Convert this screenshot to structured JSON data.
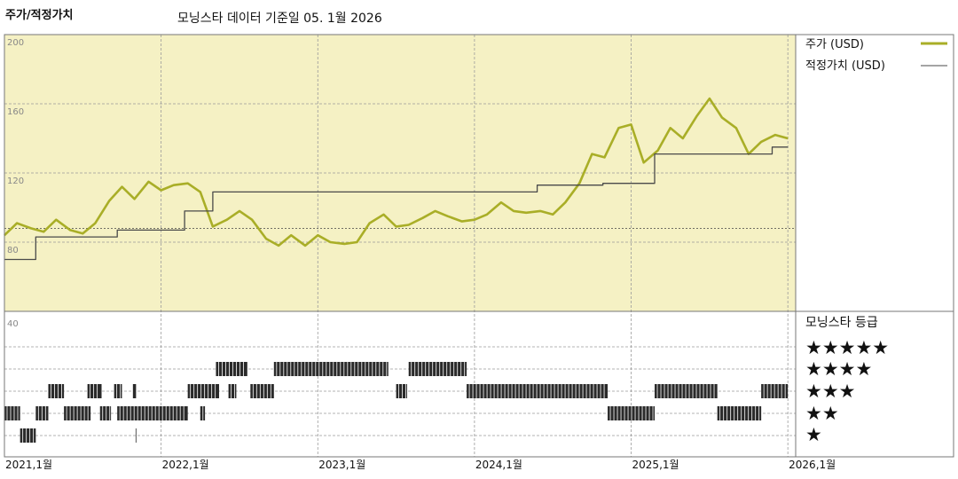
{
  "header": {
    "title": "주가/적정가치",
    "subtitle": "모닝스타 데이터 기준일 05. 1월 2026"
  },
  "legend": {
    "price_label": "주가 (USD)",
    "fair_value_label": "적정가치 (USD)"
  },
  "rating_panel": {
    "title": "모닝스타 등급",
    "stars": [
      "★★★★★",
      "★★★★",
      "★★★",
      "★★",
      "★"
    ]
  },
  "colors": {
    "plot_bg": "#f5f1c4",
    "price_line": "#a9ae27",
    "fair_value_line": "#4a4a4a",
    "rating_bar": "#2a2a2a",
    "grid": "#9a9a9a"
  },
  "chart_data": {
    "type": "line",
    "x_ticks": [
      "2021,1월",
      "2022,1월",
      "2023,1월",
      "2024,1월",
      "2025,1월",
      "2026,1월"
    ],
    "y_ticks": [
      200,
      160,
      120,
      80,
      40
    ],
    "ylim": [
      40,
      200
    ],
    "y_reference_line": 88,
    "xlim": [
      2021.0,
      2026.05
    ],
    "series": [
      {
        "name": "주가 (USD)",
        "points": [
          [
            2021.0,
            84
          ],
          [
            2021.08,
            91
          ],
          [
            2021.17,
            88
          ],
          [
            2021.25,
            86
          ],
          [
            2021.33,
            93
          ],
          [
            2021.42,
            87
          ],
          [
            2021.5,
            85
          ],
          [
            2021.58,
            91
          ],
          [
            2021.67,
            104
          ],
          [
            2021.75,
            112
          ],
          [
            2021.83,
            105
          ],
          [
            2021.92,
            115
          ],
          [
            2022.0,
            110
          ],
          [
            2022.08,
            113
          ],
          [
            2022.17,
            114
          ],
          [
            2022.25,
            109
          ],
          [
            2022.33,
            89
          ],
          [
            2022.42,
            93
          ],
          [
            2022.5,
            98
          ],
          [
            2022.58,
            93
          ],
          [
            2022.67,
            82
          ],
          [
            2022.75,
            78
          ],
          [
            2022.83,
            84
          ],
          [
            2022.92,
            78
          ],
          [
            2023.0,
            84
          ],
          [
            2023.08,
            80
          ],
          [
            2023.17,
            79
          ],
          [
            2023.25,
            80
          ],
          [
            2023.33,
            91
          ],
          [
            2023.42,
            96
          ],
          [
            2023.5,
            89
          ],
          [
            2023.58,
            90
          ],
          [
            2023.67,
            94
          ],
          [
            2023.75,
            98
          ],
          [
            2023.83,
            95
          ],
          [
            2023.92,
            92
          ],
          [
            2024.0,
            93
          ],
          [
            2024.08,
            96
          ],
          [
            2024.17,
            103
          ],
          [
            2024.25,
            98
          ],
          [
            2024.33,
            97
          ],
          [
            2024.42,
            98
          ],
          [
            2024.5,
            96
          ],
          [
            2024.58,
            103
          ],
          [
            2024.67,
            114
          ],
          [
            2024.75,
            131
          ],
          [
            2024.83,
            129
          ],
          [
            2024.92,
            146
          ],
          [
            2025.0,
            148
          ],
          [
            2025.08,
            126
          ],
          [
            2025.17,
            133
          ],
          [
            2025.25,
            146
          ],
          [
            2025.33,
            140
          ],
          [
            2025.42,
            153
          ],
          [
            2025.5,
            163
          ],
          [
            2025.58,
            152
          ],
          [
            2025.67,
            146
          ],
          [
            2025.75,
            131
          ],
          [
            2025.83,
            138
          ],
          [
            2025.92,
            142
          ],
          [
            2026.0,
            140
          ]
        ]
      },
      {
        "name": "적정가치 (USD)",
        "points": [
          [
            2021.0,
            70
          ],
          [
            2021.2,
            70
          ],
          [
            2021.2,
            83
          ],
          [
            2021.72,
            83
          ],
          [
            2021.72,
            87
          ],
          [
            2022.15,
            87
          ],
          [
            2022.15,
            98
          ],
          [
            2022.33,
            98
          ],
          [
            2022.33,
            109
          ],
          [
            2024.4,
            109
          ],
          [
            2024.4,
            113
          ],
          [
            2024.82,
            113
          ],
          [
            2024.82,
            114
          ],
          [
            2025.15,
            114
          ],
          [
            2025.15,
            131
          ],
          [
            2025.9,
            131
          ],
          [
            2025.9,
            135
          ],
          [
            2026.0,
            135
          ]
        ]
      }
    ],
    "rating_segments": [
      {
        "stars": 5,
        "ranges": []
      },
      {
        "stars": 4,
        "ranges": [
          [
            2022.35,
            2022.55
          ],
          [
            2022.72,
            2023.45
          ],
          [
            2023.58,
            2023.95
          ]
        ]
      },
      {
        "stars": 3,
        "ranges": [
          [
            2021.28,
            2021.38
          ],
          [
            2021.53,
            2021.62
          ],
          [
            2021.7,
            2021.75
          ],
          [
            2021.82,
            2021.84
          ],
          [
            2022.17,
            2022.37
          ],
          [
            2022.43,
            2022.48
          ],
          [
            2022.57,
            2022.72
          ],
          [
            2023.5,
            2023.57
          ],
          [
            2023.95,
            2024.85
          ],
          [
            2025.15,
            2025.55
          ],
          [
            2025.83,
            2026.0
          ]
        ]
      },
      {
        "stars": 2,
        "ranges": [
          [
            2021.0,
            2021.1
          ],
          [
            2021.2,
            2021.28
          ],
          [
            2021.38,
            2021.55
          ],
          [
            2021.61,
            2021.68
          ],
          [
            2021.72,
            2022.17
          ],
          [
            2022.25,
            2022.28
          ],
          [
            2024.85,
            2025.15
          ],
          [
            2025.55,
            2025.83
          ]
        ]
      },
      {
        "stars": 1,
        "ranges": [
          [
            2021.1,
            2021.2
          ]
        ]
      }
    ],
    "rating_ticks": [
      2021.84
    ]
  }
}
